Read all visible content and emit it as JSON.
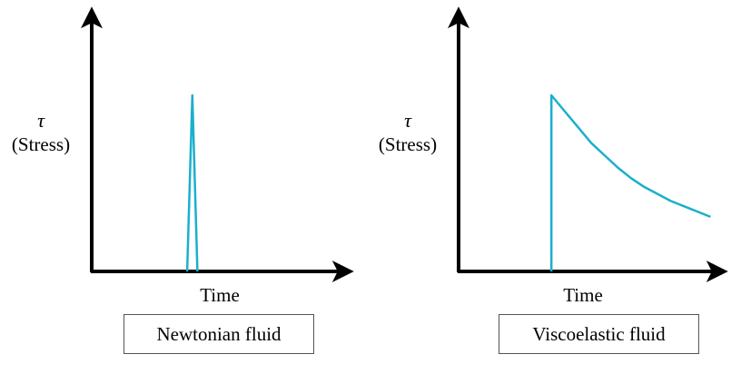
{
  "chart_data": [
    {
      "type": "line",
      "ylabel_symbol": "τ",
      "ylabel": "(Stress)",
      "xlabel": "Time",
      "caption": "Newtonian fluid",
      "line_color": "#1ab0cc",
      "axis_color": "#000000",
      "xlim": [
        0,
        10
      ],
      "ylim": [
        0,
        10
      ],
      "series": [
        {
          "x": [
            3.7,
            3.9,
            4.1
          ],
          "y": [
            0,
            10,
            0
          ]
        }
      ]
    },
    {
      "type": "line",
      "ylabel_symbol": "τ",
      "ylabel": "(Stress)",
      "xlabel": "Time",
      "caption": "Viscoelastic fluid",
      "line_color": "#1ab0cc",
      "axis_color": "#000000",
      "xlim": [
        0,
        10
      ],
      "ylim": [
        0,
        10
      ],
      "series": [
        {
          "x": [
            3.5,
            3.5,
            4,
            4.5,
            5,
            5.5,
            6,
            6.5,
            7,
            7.5,
            8,
            8.5,
            9,
            9.5
          ],
          "y": [
            0,
            10,
            9.1,
            8.2,
            7.3,
            6.6,
            5.9,
            5.3,
            4.8,
            4.4,
            4.0,
            3.7,
            3.4,
            3.1
          ]
        }
      ]
    }
  ]
}
